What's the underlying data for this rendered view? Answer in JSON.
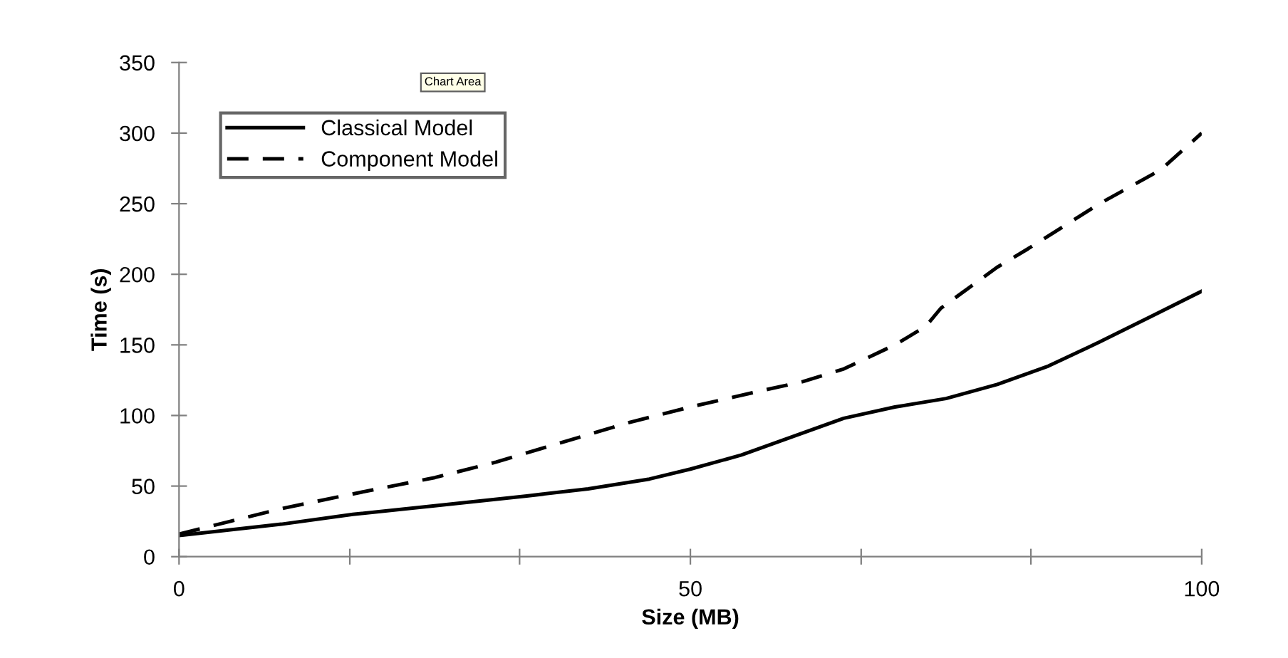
{
  "chart_data": {
    "type": "line",
    "xlabel": "Size (MB)",
    "ylabel": "Time (s)",
    "annotations": [
      "Chart Area"
    ],
    "xlim": [
      0,
      100
    ],
    "xticks": [
      0,
      {
        "value": 16.7,
        "label": null
      },
      {
        "value": 33.3,
        "label": null
      },
      50,
      {
        "value": 66.7,
        "label": null
      },
      {
        "value": 83.3,
        "label": null
      },
      100
    ],
    "ylim": [
      0,
      350
    ],
    "yticks": [
      0,
      50,
      100,
      150,
      200,
      250,
      300,
      350
    ],
    "grid": false,
    "legend": "top left",
    "marker": "none",
    "series": [
      {
        "name": "Classical Model",
        "color": "#000000",
        "line_style": "solid",
        "x": [
          0,
          10,
          17,
          25,
          34,
          40,
          46,
          50,
          55,
          60,
          65,
          70,
          75,
          80,
          85,
          90,
          95,
          100
        ],
        "values": [
          15,
          23,
          30,
          36,
          43,
          48,
          55,
          62,
          72,
          85,
          98,
          106,
          112,
          122,
          135,
          152,
          170,
          188
        ]
      },
      {
        "name": "Component Model",
        "color": "#000000",
        "line_style": "dashed",
        "x": [
          0,
          5,
          10,
          16,
          25,
          31,
          37,
          44,
          50,
          56,
          61,
          65,
          70,
          73,
          74.5,
          80,
          83,
          90,
          96,
          100
        ],
        "values": [
          16,
          25,
          34,
          43,
          56,
          67,
          80,
          95,
          106,
          116,
          124,
          133,
          150,
          163,
          176,
          205,
          218,
          250,
          274,
          300
        ]
      }
    ]
  }
}
